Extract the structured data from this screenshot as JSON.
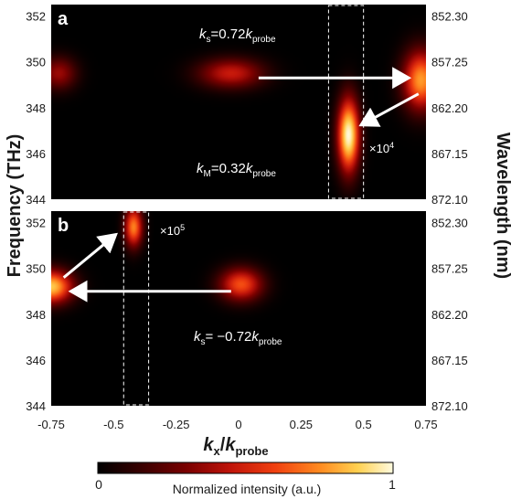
{
  "chart_data": {
    "type": "heatmap",
    "panels": [
      {
        "letter": "a",
        "ylim": [
          344,
          352.5
        ],
        "xlim": [
          -0.75,
          0.75
        ],
        "annotations": [
          {
            "id": "ks",
            "pre": "k",
            "sub": "s",
            "mid": "=0.72",
            "k": "k",
            "ksub": "probe"
          },
          {
            "id": "km",
            "pre": "k",
            "sub": "M",
            "mid": "=0.32",
            "k": "k",
            "ksub": "probe"
          }
        ],
        "multiplier": {
          "base": "×10",
          "exp": "4"
        },
        "blobs": [
          {
            "x": -0.72,
            "y": 349.5,
            "sx": 0.05,
            "sy": 0.5,
            "amp": 0.35
          },
          {
            "x": -0.03,
            "y": 349.5,
            "sx": 0.09,
            "sy": 0.45,
            "amp": 0.45
          },
          {
            "x": 0.73,
            "y": 349.2,
            "sx": 0.05,
            "sy": 0.9,
            "amp": 0.75
          },
          {
            "x": 0.44,
            "y": 346.8,
            "sx": 0.03,
            "sy": 1.1,
            "amp": 1.0
          }
        ],
        "box": {
          "x0": 0.36,
          "x1": 0.5
        },
        "arrows": [
          {
            "x1": 0.08,
            "y1": 349.3,
            "x2": 0.67,
            "y2": 349.3
          },
          {
            "x1": 0.72,
            "y1": 348.6,
            "x2": 0.5,
            "y2": 347.3
          }
        ]
      },
      {
        "letter": "b",
        "ylim": [
          344,
          352.5
        ],
        "xlim": [
          -0.75,
          0.75
        ],
        "annotations": [
          {
            "id": "ks",
            "pre": "k",
            "sub": "s",
            "mid": "= −0.72",
            "k": "k",
            "ksub": "probe"
          }
        ],
        "multiplier": {
          "base": "×10",
          "exp": "5"
        },
        "blobs": [
          {
            "x": -0.75,
            "y": 349.2,
            "sx": 0.06,
            "sy": 0.5,
            "amp": 0.85
          },
          {
            "x": 0.01,
            "y": 349.3,
            "sx": 0.06,
            "sy": 0.5,
            "amp": 0.6
          },
          {
            "x": -0.42,
            "y": 351.8,
            "sx": 0.025,
            "sy": 0.6,
            "amp": 0.7
          }
        ],
        "box": {
          "x0": -0.46,
          "x1": -0.36
        },
        "arrows": [
          {
            "x1": -0.03,
            "y1": 349.0,
            "x2": -0.66,
            "y2": 349.0
          },
          {
            "x1": -0.7,
            "y1": 349.6,
            "x2": -0.5,
            "y2": 351.4
          }
        ]
      }
    ],
    "x_ticks": [
      "-0.75",
      "-0.5",
      "-0.25",
      "0",
      "0.25",
      "0.5",
      "0.75"
    ],
    "y_ticks_left": [
      "352",
      "350",
      "348",
      "346",
      "344"
    ],
    "y_ticks_right": [
      "852.30",
      "857.25",
      "862.20",
      "867.15",
      "872.10"
    ],
    "xlabel": {
      "k": "k",
      "x": "x",
      "slash": "/",
      "k2": "k",
      "probe": "probe"
    },
    "ylabel_left": "Frequency  (THz)",
    "ylabel_right": "Wavelength (nm)",
    "colorbar": {
      "min": "0",
      "max": "1",
      "label": "Normalized intensity (a.u.)"
    },
    "colormap": [
      "#000000",
      "#3a0000",
      "#7a0000",
      "#c0140a",
      "#f04010",
      "#ff8a20",
      "#ffd050",
      "#fffbe0"
    ]
  }
}
